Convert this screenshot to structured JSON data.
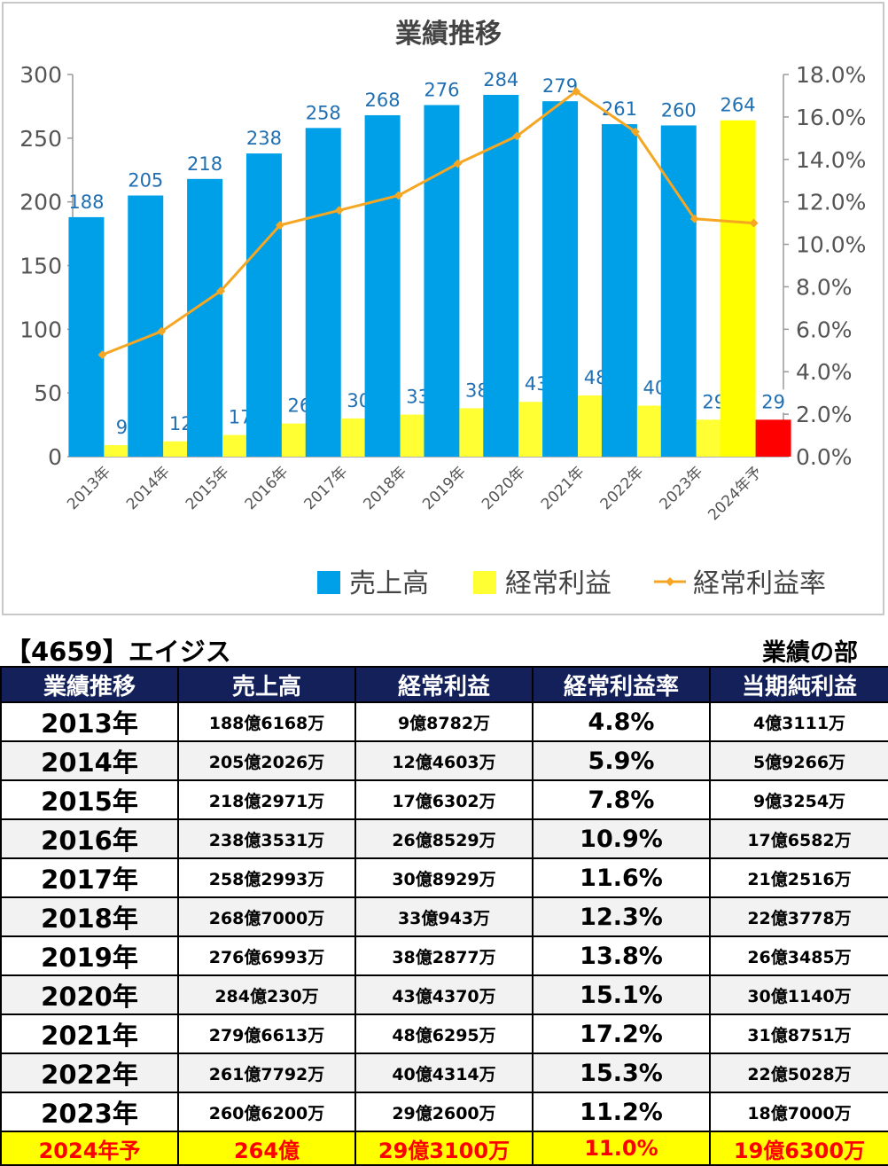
{
  "chart_data": {
    "type": "bar",
    "title": "業績推移",
    "categories": [
      "2013年",
      "2014年",
      "2015年",
      "2016年",
      "2017年",
      "2018年",
      "2019年",
      "2020年",
      "2021年",
      "2022年",
      "2023年",
      "2024年予"
    ],
    "series": [
      {
        "name": "売上高",
        "type": "bar",
        "axis": "left",
        "color": "#00a0e9",
        "values": [
          188,
          205,
          218,
          238,
          258,
          268,
          276,
          284,
          279,
          261,
          260,
          264
        ],
        "point_colors": {
          "11": "#ffff00"
        }
      },
      {
        "name": "経常利益",
        "type": "bar",
        "axis": "left",
        "color": "#ffff33",
        "values": [
          9,
          12,
          17,
          26,
          30,
          33,
          38,
          43,
          48,
          40,
          29,
          29
        ],
        "point_colors": {
          "11": "#ff0000"
        }
      },
      {
        "name": "経常利益率",
        "type": "line",
        "axis": "right",
        "color": "#f5a623",
        "values": [
          4.8,
          5.9,
          7.8,
          10.9,
          11.6,
          12.3,
          13.8,
          15.1,
          17.2,
          15.3,
          11.2,
          11.0
        ]
      }
    ],
    "ylim": [
      0,
      300
    ],
    "yticks": [
      "0",
      "50",
      "100",
      "150",
      "200",
      "250",
      "300"
    ],
    "y2lim": [
      0,
      18
    ],
    "y2ticks": [
      "0.0%",
      "2.0%",
      "4.0%",
      "6.0%",
      "8.0%",
      "10.0%",
      "12.0%",
      "14.0%",
      "16.0%",
      "18.0%"
    ],
    "legend_position": "bottom",
    "grid": false
  },
  "captions": {
    "left": "【4659】エイジス",
    "right": "業績の部"
  },
  "table": {
    "headers": [
      "業績推移",
      "売上高",
      "経常利益",
      "経常利益率",
      "当期純利益"
    ],
    "rows": [
      [
        "2013年",
        "188億6168万",
        "9億8782万",
        "4.8%",
        "4億3111万"
      ],
      [
        "2014年",
        "205億2026万",
        "12億4603万",
        "5.9%",
        "5億9266万"
      ],
      [
        "2015年",
        "218億2971万",
        "17億6302万",
        "7.8%",
        "9億3254万"
      ],
      [
        "2016年",
        "238億3531万",
        "26億8529万",
        "10.9%",
        "17億6582万"
      ],
      [
        "2017年",
        "258億2993万",
        "30億8929万",
        "11.6%",
        "21億2516万"
      ],
      [
        "2018年",
        "268億7000万",
        "33億943万",
        "12.3%",
        "22億3778万"
      ],
      [
        "2019年",
        "276億6993万",
        "38億2877万",
        "13.8%",
        "26億3485万"
      ],
      [
        "2020年",
        "284億230万",
        "43億4370万",
        "15.1%",
        "30億1140万"
      ],
      [
        "2021年",
        "279億6613万",
        "48億6295万",
        "17.2%",
        "31億8751万"
      ],
      [
        "2022年",
        "261億7792万",
        "40億4314万",
        "15.3%",
        "22億5028万"
      ],
      [
        "2023年",
        "260億6200万",
        "29億2600万",
        "11.2%",
        "18億7000万"
      ]
    ],
    "forecast_row": [
      "2024年予",
      "264億",
      "29億3100万",
      "11.0%",
      "19億6300万"
    ]
  }
}
